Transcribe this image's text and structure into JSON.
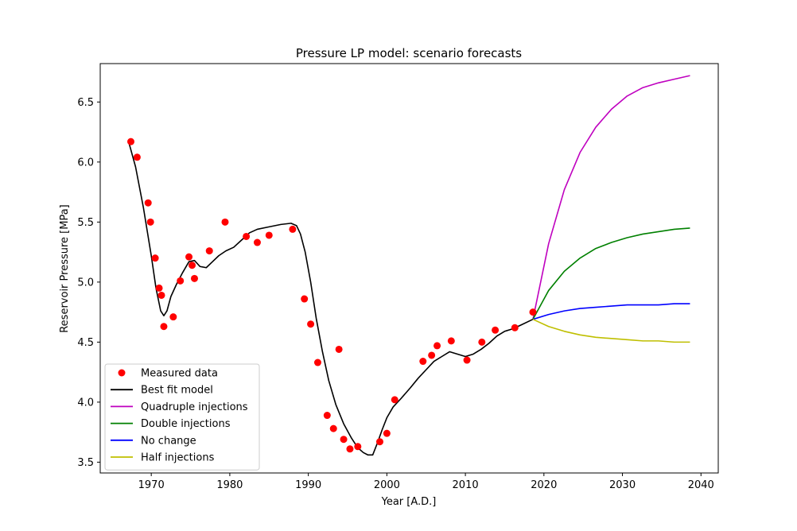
{
  "chart_data": {
    "type": "line",
    "title": "Pressure LP model: scenario forecasts",
    "xlabel": "Year [A.D.]",
    "ylabel": "Reservoir Pressure [MPa]",
    "xlim": [
      1963.5,
      2042.2
    ],
    "ylim": [
      3.41,
      6.82
    ],
    "xticks": [
      1970,
      1980,
      1990,
      2000,
      2010,
      2020,
      2030,
      2040
    ],
    "yticks": [
      3.5,
      4.0,
      4.5,
      5.0,
      5.5,
      6.0,
      6.5
    ],
    "xtick_labels": [
      "1970",
      "1980",
      "1990",
      "2000",
      "2010",
      "2020",
      "2030",
      "2040"
    ],
    "ytick_labels": [
      "3.5",
      "4.0",
      "4.5",
      "5.0",
      "5.5",
      "6.0",
      "6.5"
    ],
    "grid": false,
    "legend_position": "bottom-left",
    "measured": {
      "name": "Measured data",
      "color": "#ff0000",
      "x": [
        1967.4,
        1968.2,
        1969.6,
        1969.9,
        1970.5,
        1971.0,
        1971.3,
        1971.6,
        1972.8,
        1973.7,
        1974.8,
        1975.2,
        1975.5,
        1977.4,
        1979.4,
        1982.1,
        1983.5,
        1985.0,
        1988.0,
        1989.5,
        1990.3,
        1991.2,
        1992.4,
        1993.2,
        1993.9,
        1994.5,
        1995.3,
        1996.3,
        1999.1,
        2000.0,
        2001.0,
        2004.6,
        2005.7,
        2006.4,
        2008.2,
        2010.2,
        2012.1,
        2013.8,
        2016.3,
        2018.6
      ],
      "y": [
        6.17,
        6.04,
        5.66,
        5.5,
        5.2,
        4.95,
        4.89,
        4.63,
        4.71,
        5.01,
        5.21,
        5.14,
        5.03,
        5.26,
        5.5,
        5.38,
        5.33,
        5.39,
        5.44,
        4.86,
        4.65,
        4.33,
        3.89,
        3.78,
        4.44,
        3.69,
        3.61,
        3.63,
        3.67,
        3.74,
        4.02,
        4.34,
        4.39,
        4.47,
        4.51,
        4.35,
        4.5,
        4.6,
        4.62,
        4.75
      ]
    },
    "series": [
      {
        "name": "Best fit model",
        "color": "#000000",
        "x": [
          1967.2,
          1968.0,
          1969.0,
          1970.0,
          1970.6,
          1971.2,
          1971.6,
          1972.0,
          1972.5,
          1973.2,
          1974.0,
          1974.8,
          1975.5,
          1976.2,
          1977.0,
          1977.8,
          1978.6,
          1979.5,
          1980.5,
          1981.5,
          1982.5,
          1983.5,
          1985.0,
          1986.5,
          1987.8,
          1988.5,
          1989.0,
          1989.6,
          1990.3,
          1991.0,
          1991.8,
          1992.6,
          1993.5,
          1994.5,
          1995.5,
          1996.3,
          1997.0,
          1997.6,
          1998.2,
          1998.8,
          1999.4,
          2000.0,
          2000.8,
          2001.8,
          2003.0,
          2004.0,
          2005.0,
          2006.0,
          2007.0,
          2008.0,
          2009.0,
          2010.0,
          2011.0,
          2012.0,
          2013.0,
          2014.0,
          2015.0,
          2016.0,
          2017.0,
          2018.6
        ],
        "y": [
          6.15,
          5.96,
          5.62,
          5.22,
          4.95,
          4.76,
          4.72,
          4.76,
          4.88,
          4.98,
          5.08,
          5.17,
          5.18,
          5.13,
          5.12,
          5.17,
          5.22,
          5.26,
          5.29,
          5.35,
          5.41,
          5.44,
          5.46,
          5.48,
          5.49,
          5.47,
          5.4,
          5.25,
          5.0,
          4.7,
          4.42,
          4.18,
          3.98,
          3.82,
          3.7,
          3.62,
          3.58,
          3.56,
          3.56,
          3.66,
          3.77,
          3.87,
          3.96,
          4.03,
          4.12,
          4.2,
          4.27,
          4.34,
          4.38,
          4.42,
          4.4,
          4.38,
          4.4,
          4.44,
          4.49,
          4.55,
          4.59,
          4.61,
          4.64,
          4.69
        ]
      },
      {
        "name": "Quadruple injections",
        "color": "#bf00bf",
        "x": [
          2018.6,
          2020.6,
          2022.6,
          2024.6,
          2026.6,
          2028.6,
          2030.6,
          2032.6,
          2034.6,
          2036.6,
          2038.6
        ],
        "y": [
          4.69,
          5.32,
          5.77,
          6.08,
          6.29,
          6.44,
          6.55,
          6.62,
          6.66,
          6.69,
          6.72
        ]
      },
      {
        "name": "Double injections",
        "color": "#008000",
        "x": [
          2018.6,
          2020.6,
          2022.6,
          2024.6,
          2026.6,
          2028.6,
          2030.6,
          2032.6,
          2034.6,
          2036.6,
          2038.6
        ],
        "y": [
          4.69,
          4.93,
          5.09,
          5.2,
          5.28,
          5.33,
          5.37,
          5.4,
          5.42,
          5.44,
          5.45
        ]
      },
      {
        "name": "No change",
        "color": "#0000ff",
        "x": [
          2018.6,
          2020.6,
          2022.6,
          2024.6,
          2026.6,
          2028.6,
          2030.6,
          2032.6,
          2034.6,
          2036.6,
          2038.6
        ],
        "y": [
          4.69,
          4.73,
          4.76,
          4.78,
          4.79,
          4.8,
          4.81,
          4.81,
          4.81,
          4.82,
          4.82
        ]
      },
      {
        "name": "Half injections",
        "color": "#bfbf00",
        "x": [
          2018.6,
          2020.6,
          2022.6,
          2024.6,
          2026.6,
          2028.6,
          2030.6,
          2032.6,
          2034.6,
          2036.6,
          2038.6
        ],
        "y": [
          4.69,
          4.63,
          4.59,
          4.56,
          4.54,
          4.53,
          4.52,
          4.51,
          4.51,
          4.5,
          4.5
        ]
      }
    ]
  }
}
